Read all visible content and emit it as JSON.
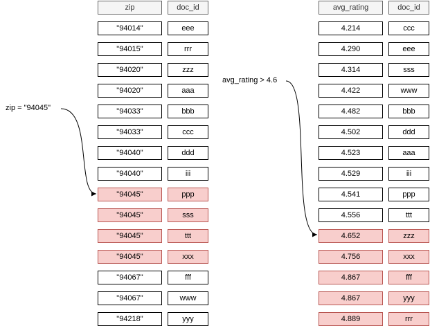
{
  "left_table": {
    "headers": {
      "zip": "zip",
      "doc_id": "doc_id"
    },
    "rows": [
      {
        "zip": "\"94014\"",
        "doc_id": "eee"
      },
      {
        "zip": "\"94015\"",
        "doc_id": "rrr"
      },
      {
        "zip": "\"94020\"",
        "doc_id": "zzz"
      },
      {
        "zip": "\"94020\"",
        "doc_id": "aaa"
      },
      {
        "zip": "\"94033\"",
        "doc_id": "bbb"
      },
      {
        "zip": "\"94033\"",
        "doc_id": "ccc"
      },
      {
        "zip": "\"94040\"",
        "doc_id": "ddd"
      },
      {
        "zip": "\"94040\"",
        "doc_id": "iii"
      },
      {
        "zip": "\"94045\"",
        "doc_id": "ppp"
      },
      {
        "zip": "\"94045\"",
        "doc_id": "sss"
      },
      {
        "zip": "\"94045\"",
        "doc_id": "ttt"
      },
      {
        "zip": "\"94045\"",
        "doc_id": "xxx"
      },
      {
        "zip": "\"94067\"",
        "doc_id": "fff"
      },
      {
        "zip": "\"94067\"",
        "doc_id": "www"
      },
      {
        "zip": "\"94218\"",
        "doc_id": "yyy"
      }
    ],
    "highlighted_rows": [
      8,
      9,
      10,
      11
    ]
  },
  "right_table": {
    "headers": {
      "avg_rating": "avg_rating",
      "doc_id": "doc_id"
    },
    "rows": [
      {
        "avg_rating": "4.214",
        "doc_id": "ccc"
      },
      {
        "avg_rating": "4.290",
        "doc_id": "eee"
      },
      {
        "avg_rating": "4.314",
        "doc_id": "sss"
      },
      {
        "avg_rating": "4.422",
        "doc_id": "www"
      },
      {
        "avg_rating": "4.482",
        "doc_id": "bbb"
      },
      {
        "avg_rating": "4.502",
        "doc_id": "ddd"
      },
      {
        "avg_rating": "4.523",
        "doc_id": "aaa"
      },
      {
        "avg_rating": "4.529",
        "doc_id": "iii"
      },
      {
        "avg_rating": "4.541",
        "doc_id": "ppp"
      },
      {
        "avg_rating": "4.556",
        "doc_id": "ttt"
      },
      {
        "avg_rating": "4.652",
        "doc_id": "zzz"
      },
      {
        "avg_rating": "4.756",
        "doc_id": "xxx"
      },
      {
        "avg_rating": "4.867",
        "doc_id": "fff"
      },
      {
        "avg_rating": "4.867",
        "doc_id": "yyy"
      },
      {
        "avg_rating": "4.889",
        "doc_id": "rrr"
      }
    ],
    "highlighted_rows": [
      10,
      11,
      12,
      13,
      14
    ]
  },
  "annotations": {
    "zip_filter": "zip = \"94045\"",
    "rating_filter": "avg_rating > 4.6"
  },
  "colors": {
    "highlight_fill": "#f8cecc",
    "highlight_stroke": "#b85450",
    "header_fill": "#f5f5f5",
    "header_stroke": "#666666"
  }
}
